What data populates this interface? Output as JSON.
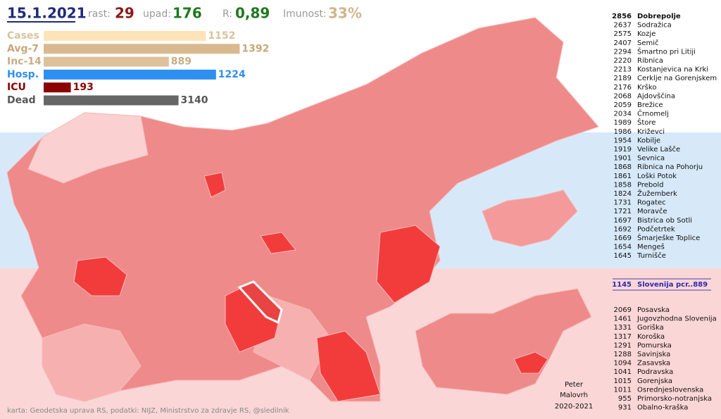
{
  "header": {
    "date": "15.1.2021",
    "growth_label": "rast:",
    "growth": 29,
    "decline_label": "upad:",
    "decline": 176,
    "r_label": "R:",
    "r": "0,89",
    "immunity_label": "Imunost:",
    "immunity": "33%"
  },
  "summary": {
    "rows": [
      {
        "label": "Cases",
        "value": 1152,
        "color": "#fde4b8",
        "text_color": "#d9c39c"
      },
      {
        "label": "Avg-7",
        "value": 1392,
        "color": "#d9b98f",
        "text_color": "#c8a678"
      },
      {
        "label": "Inc-14",
        "value": 889,
        "color": "#dcc19b",
        "text_color": "#c8ad85"
      },
      {
        "label": "Hosp.",
        "value": 1224,
        "color": "#2d8ff0",
        "text_color": "#2d8ff0"
      },
      {
        "label": "ICU",
        "value": 193,
        "color": "#8b0000",
        "text_color": "#8b0000"
      },
      {
        "label": "Dead",
        "value": 3140,
        "color": "#666666",
        "text_color": "#555555"
      }
    ]
  },
  "municipalities": [
    {
      "value": 2856,
      "name": "Dobrepolje"
    },
    {
      "value": 2637,
      "name": "Sodražica"
    },
    {
      "value": 2575,
      "name": "Kozje"
    },
    {
      "value": 2407,
      "name": "Semič"
    },
    {
      "value": 2294,
      "name": "Šmartno pri Litiji"
    },
    {
      "value": 2220,
      "name": "Ribnica"
    },
    {
      "value": 2213,
      "name": "Kostanjevica na Krki"
    },
    {
      "value": 2189,
      "name": "Cerklje na Gorenjskem"
    },
    {
      "value": 2176,
      "name": "Krško"
    },
    {
      "value": 2068,
      "name": "Ajdovščina"
    },
    {
      "value": 2059,
      "name": "Brežice"
    },
    {
      "value": 2034,
      "name": "Črnomelj"
    },
    {
      "value": 1989,
      "name": "Štore"
    },
    {
      "value": 1986,
      "name": "Križevci"
    },
    {
      "value": 1954,
      "name": "Kobilje"
    },
    {
      "value": 1919,
      "name": "Velike Lašče"
    },
    {
      "value": 1901,
      "name": "Sevnica"
    },
    {
      "value": 1868,
      "name": "Ribnica na Pohorju"
    },
    {
      "value": 1861,
      "name": "Loški Potok"
    },
    {
      "value": 1858,
      "name": "Prebold"
    },
    {
      "value": 1824,
      "name": "Žužemberk"
    },
    {
      "value": 1731,
      "name": "Rogatec"
    },
    {
      "value": 1721,
      "name": "Moravče"
    },
    {
      "value": 1697,
      "name": "Bistrica ob Sotli"
    },
    {
      "value": 1692,
      "name": "Podčetrtek"
    },
    {
      "value": 1669,
      "name": "Šmarješke Toplice"
    },
    {
      "value": 1654,
      "name": "Mengeš"
    },
    {
      "value": 1645,
      "name": "Turnišče"
    }
  ],
  "slovenia": {
    "value": 1145,
    "label": "Slovenija  pcr..889"
  },
  "regions": [
    {
      "value": 2069,
      "name": "Posavska"
    },
    {
      "value": 1461,
      "name": "Jugovzhodna Slovenija"
    },
    {
      "value": 1331,
      "name": "Goriška"
    },
    {
      "value": 1317,
      "name": "Koroška"
    },
    {
      "value": 1291,
      "name": "Pomurska"
    },
    {
      "value": 1288,
      "name": "Savinjska"
    },
    {
      "value": 1094,
      "name": "Zasavska"
    },
    {
      "value": 1041,
      "name": "Podravska"
    },
    {
      "value": 1015,
      "name": "Gorenjska"
    },
    {
      "value": 1011,
      "name": "Osrednjeslovenska"
    },
    {
      "value": 955,
      "name": "Primorsko-notranjska"
    },
    {
      "value": 931,
      "name": "Obalno-kraška"
    }
  ],
  "credits": {
    "sources": "karta: Geodetska uprava RS,   podatki: NIJZ, Ministrstvo za zdravje RS, @sledilnik",
    "author_first": "Peter",
    "author_last": "Malovrh",
    "years": "2020-2021"
  }
}
